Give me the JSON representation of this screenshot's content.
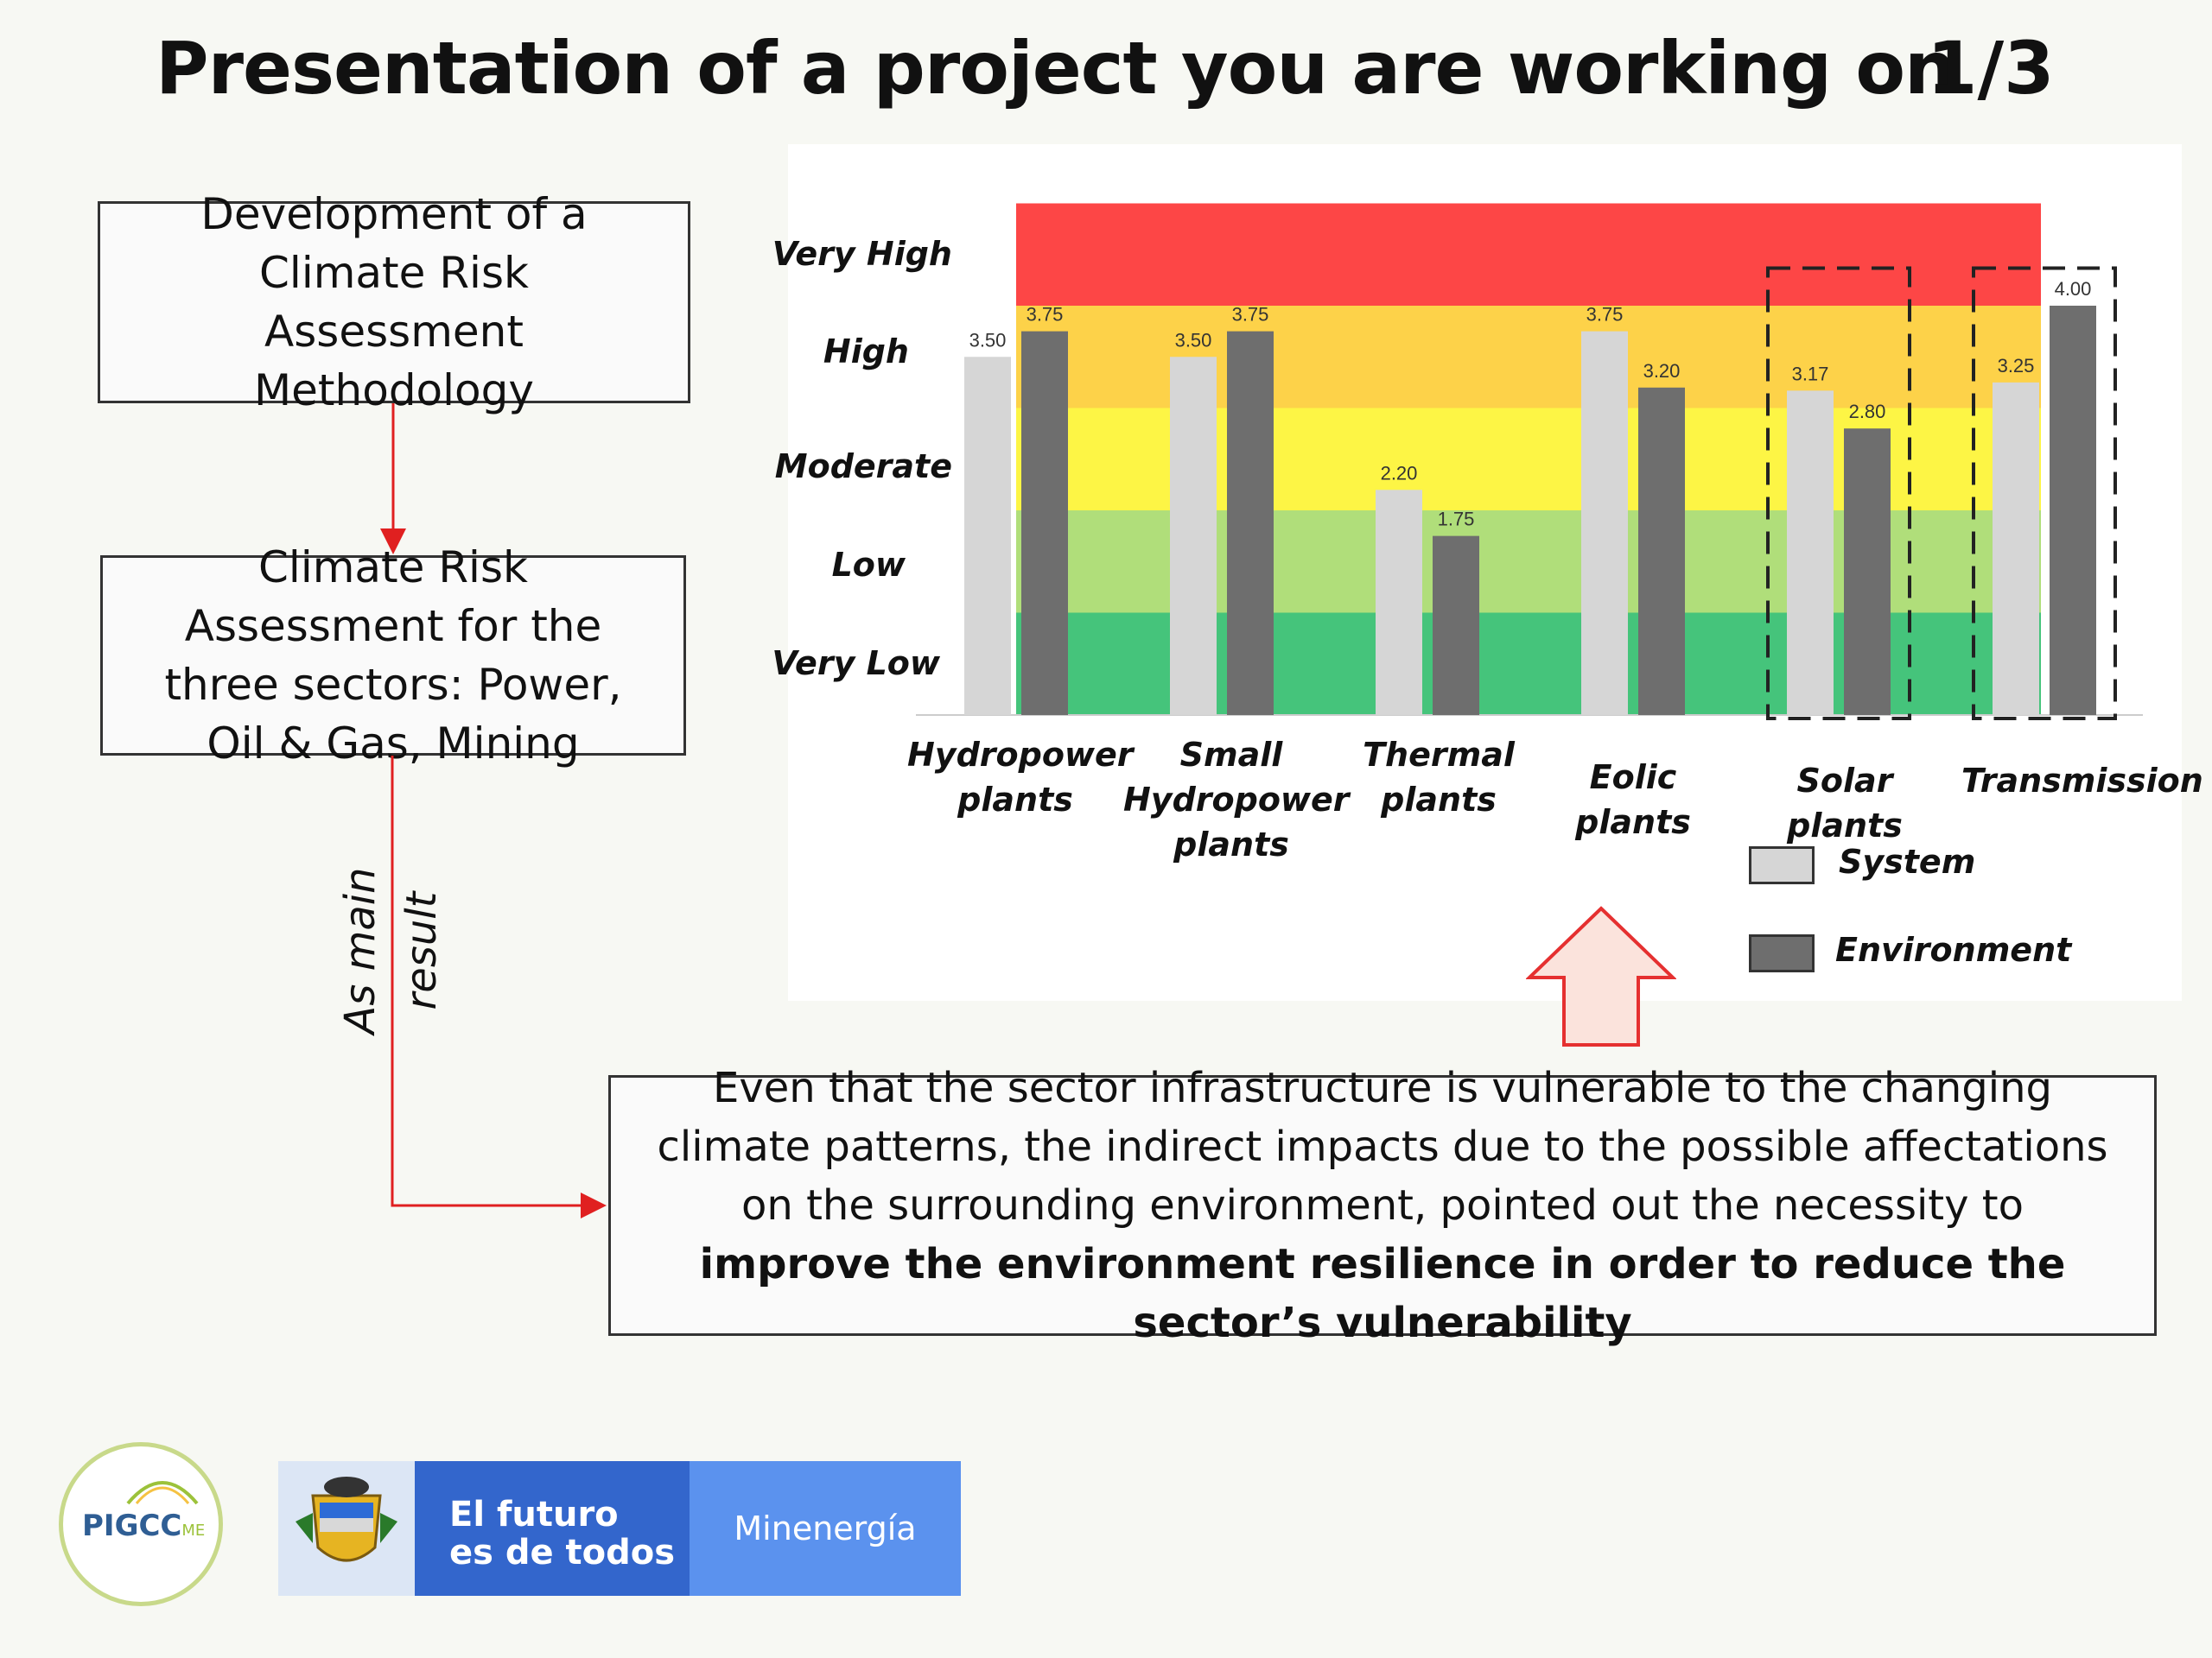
{
  "slide": {
    "title": "Presentation of a project you are working on",
    "page_indicator": "1/3"
  },
  "flow": {
    "box1_text": "Development of a Climate Risk Assessment Methodology",
    "box2_text": "Climate Risk Assessment for the three sectors: Power, Oil & Gas, Mining",
    "side_label_1": "As main",
    "side_label_2": "result",
    "box3_text": "Even that the sector infrastructure is vulnerable to the changing climate patterns, the indirect impacts due to the possible affectations on the surrounding environment, pointed out the necessity to",
    "box3_bold": "improve the environment resilience in order to reduce the sector’s vulnerability"
  },
  "chart_data": {
    "type": "bar",
    "categories": [
      "Hydropower plants",
      "Small Hydropower plants",
      "Thermal plants",
      "Eolic plants",
      "Solar plants",
      "Transmission"
    ],
    "series": [
      {
        "name": "System",
        "values": [
          3.5,
          3.5,
          2.2,
          3.75,
          3.17,
          3.25
        ],
        "labels": [
          "3.50",
          "3.50",
          "2.20",
          "3.75",
          "3.17",
          "3.25"
        ],
        "color": "#d6d6d6"
      },
      {
        "name": "Environment",
        "values": [
          3.75,
          3.75,
          1.75,
          3.2,
          2.8,
          4.0
        ],
        "labels": [
          "3.75",
          "3.75",
          "1.75",
          "3.20",
          "2.80",
          "4.00"
        ],
        "color": "#6e6e6e"
      }
    ],
    "ylim": [
      0,
      5
    ],
    "y_levels": [
      "Very Low",
      "Low",
      "Moderate",
      "High",
      "Very High"
    ],
    "band_colors": [
      "#45c47b",
      "#b0de7a",
      "#fdf545",
      "#fdd249",
      "#fd4646"
    ],
    "highlighted_categories": [
      "Solar plants",
      "Transmission"
    ],
    "legend_position": "bottom-right"
  },
  "colors": {
    "arrow_red": "#e02020",
    "up_arrow_fill": "#fbe3dc",
    "up_arrow_stroke": "#e53030"
  },
  "logos": {
    "pigcc_text": "PIGCC",
    "pigcc_suffix": "ME",
    "gov_line1": "El futuro",
    "gov_line2": "es de todos",
    "ministry": "Minenergía"
  }
}
